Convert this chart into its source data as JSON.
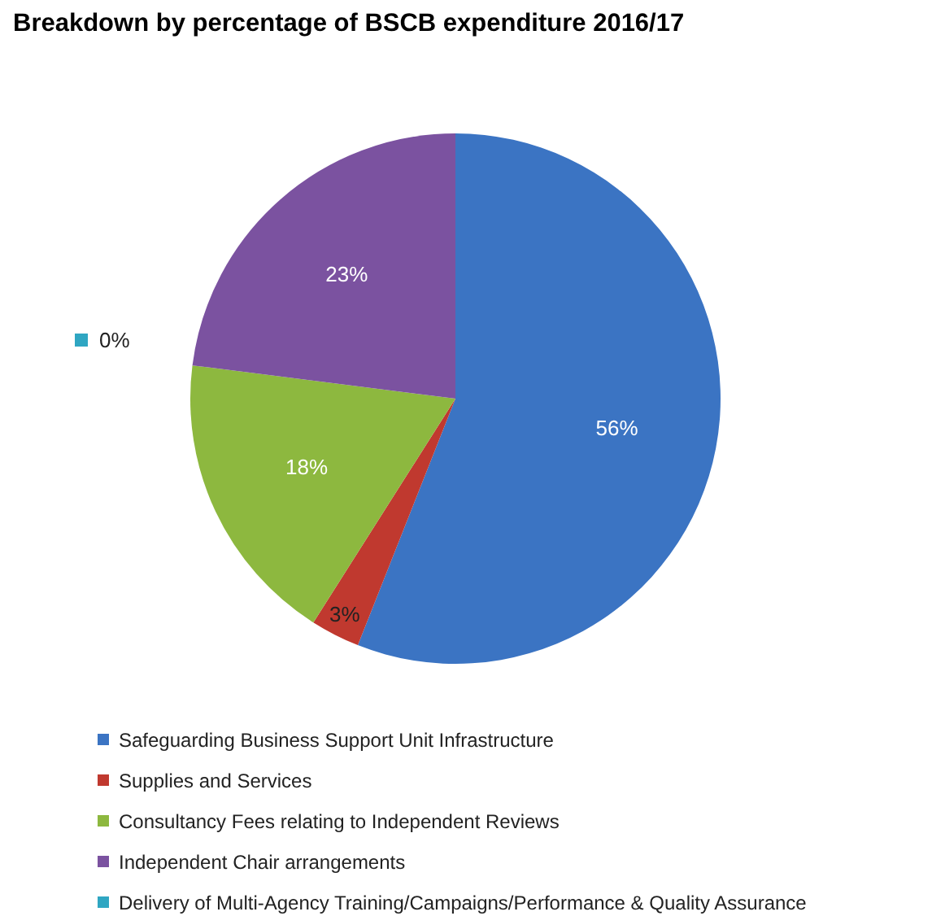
{
  "chart_data": {
    "type": "pie",
    "title": "Breakdown by percentage of BSCB expenditure 2016/17",
    "categories": [
      "Safeguarding Business Support Unit Infrastructure",
      "Supplies and Services",
      "Consultancy Fees relating to Independent Reviews",
      "Independent Chair arrangements",
      "Delivery of Multi-Agency Training/Campaigns/Performance & Quality Assurance"
    ],
    "values": [
      56,
      3,
      18,
      23,
      0
    ],
    "value_labels": [
      "56%",
      "3%",
      "18%",
      "23%",
      "0%"
    ],
    "colors": [
      "#3b74c3",
      "#c0392f",
      "#8db83f",
      "#7b52a0",
      "#2fa6c2"
    ],
    "legend": "bottom"
  }
}
